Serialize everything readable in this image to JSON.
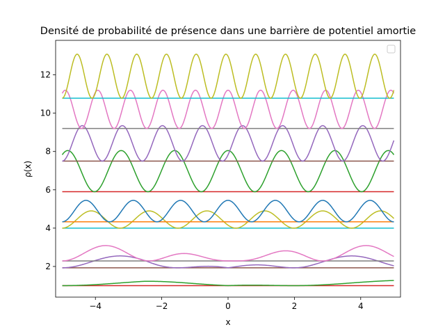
{
  "chart_data": {
    "type": "line",
    "title": "Densité de probabilité de présence dans une barrière de potentiel amortie",
    "xlabel": "x",
    "ylabel": "ρ(x)",
    "xlim": [
      -5.2,
      5.2
    ],
    "ylim": [
      0.4,
      13.8
    ],
    "xticks": [
      -4,
      -2,
      0,
      2,
      4
    ],
    "xtick_labels": [
      "−4",
      "−2",
      "0",
      "2",
      "4"
    ],
    "yticks": [
      2,
      4,
      6,
      8,
      10,
      12
    ],
    "ytick_labels": [
      "2",
      "4",
      "6",
      "8",
      "10",
      "12"
    ],
    "grid": false,
    "legend": "top-right",
    "x_range": [
      -5,
      5
    ],
    "levels": [
      {
        "baseline": 1.0,
        "baseline_color": "#d62728",
        "curve_color": "#2ca02c",
        "amplitude": 0.28,
        "shape": "sin2_damped",
        "k": 0.45
      },
      {
        "baseline": 1.93,
        "baseline_color": "#8c564b",
        "curve_color": "#9467bd",
        "amplitude": 0.62,
        "shape": "sin2_damped",
        "k": 0.9
      },
      {
        "baseline": 2.29,
        "baseline_color": "#7f7f7f",
        "curve_color": "#e377c2",
        "amplitude": 0.8,
        "shape": "sin2_damped",
        "k": 1.2
      },
      {
        "baseline": 4.0,
        "baseline_color": "#17becf",
        "curve_color": "#bcbd22",
        "amplitude": 0.9,
        "shape": "sin2",
        "k": 1.8
      },
      {
        "baseline": 4.33,
        "baseline_color": "#ff7f0e",
        "curve_color": "#1f77b4",
        "amplitude": 1.12,
        "shape": "sin2",
        "k": 2.2
      },
      {
        "baseline": 5.9,
        "baseline_color": "#d62728",
        "curve_color": "#2ca02c",
        "amplitude": 2.15,
        "shape": "cos2",
        "k": 1.95
      },
      {
        "baseline": 7.5,
        "baseline_color": "#8c564b",
        "curve_color": "#9467bd",
        "amplitude": 1.85,
        "shape": "sin2",
        "k": 2.6
      },
      {
        "baseline": 9.2,
        "baseline_color": "#7f7f7f",
        "curve_color": "#e377c2",
        "amplitude": 2.0,
        "shape": "cos2",
        "k": 3.2
      },
      {
        "baseline": 10.78,
        "baseline_color": "#17becf",
        "curve_color": "#bcbd22",
        "amplitude": 2.3,
        "shape": "sin2",
        "k": 3.5
      }
    ]
  }
}
